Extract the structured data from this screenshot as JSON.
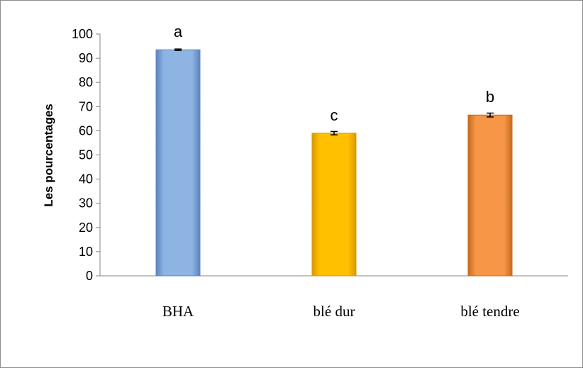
{
  "chart_data": {
    "type": "bar",
    "title": "",
    "xlabel": "",
    "ylabel": "Les pourcentages",
    "ylim": [
      0,
      100
    ],
    "yticks": [
      0,
      10,
      20,
      30,
      40,
      50,
      60,
      70,
      80,
      90,
      100
    ],
    "grid": false,
    "legend": "none",
    "categories": [
      "BHA",
      "blé dur",
      "blé tendre"
    ],
    "values": [
      93.5,
      59,
      66.5
    ],
    "errors": [
      0.3,
      0.7,
      0.8
    ],
    "significance_letters": [
      "a",
      "c",
      "b"
    ],
    "colors": [
      "#8db4e2",
      "#ffc000",
      "#f79646"
    ],
    "edge_colors": [
      "#5b84bf",
      "#d99a00",
      "#c86a1e"
    ]
  }
}
